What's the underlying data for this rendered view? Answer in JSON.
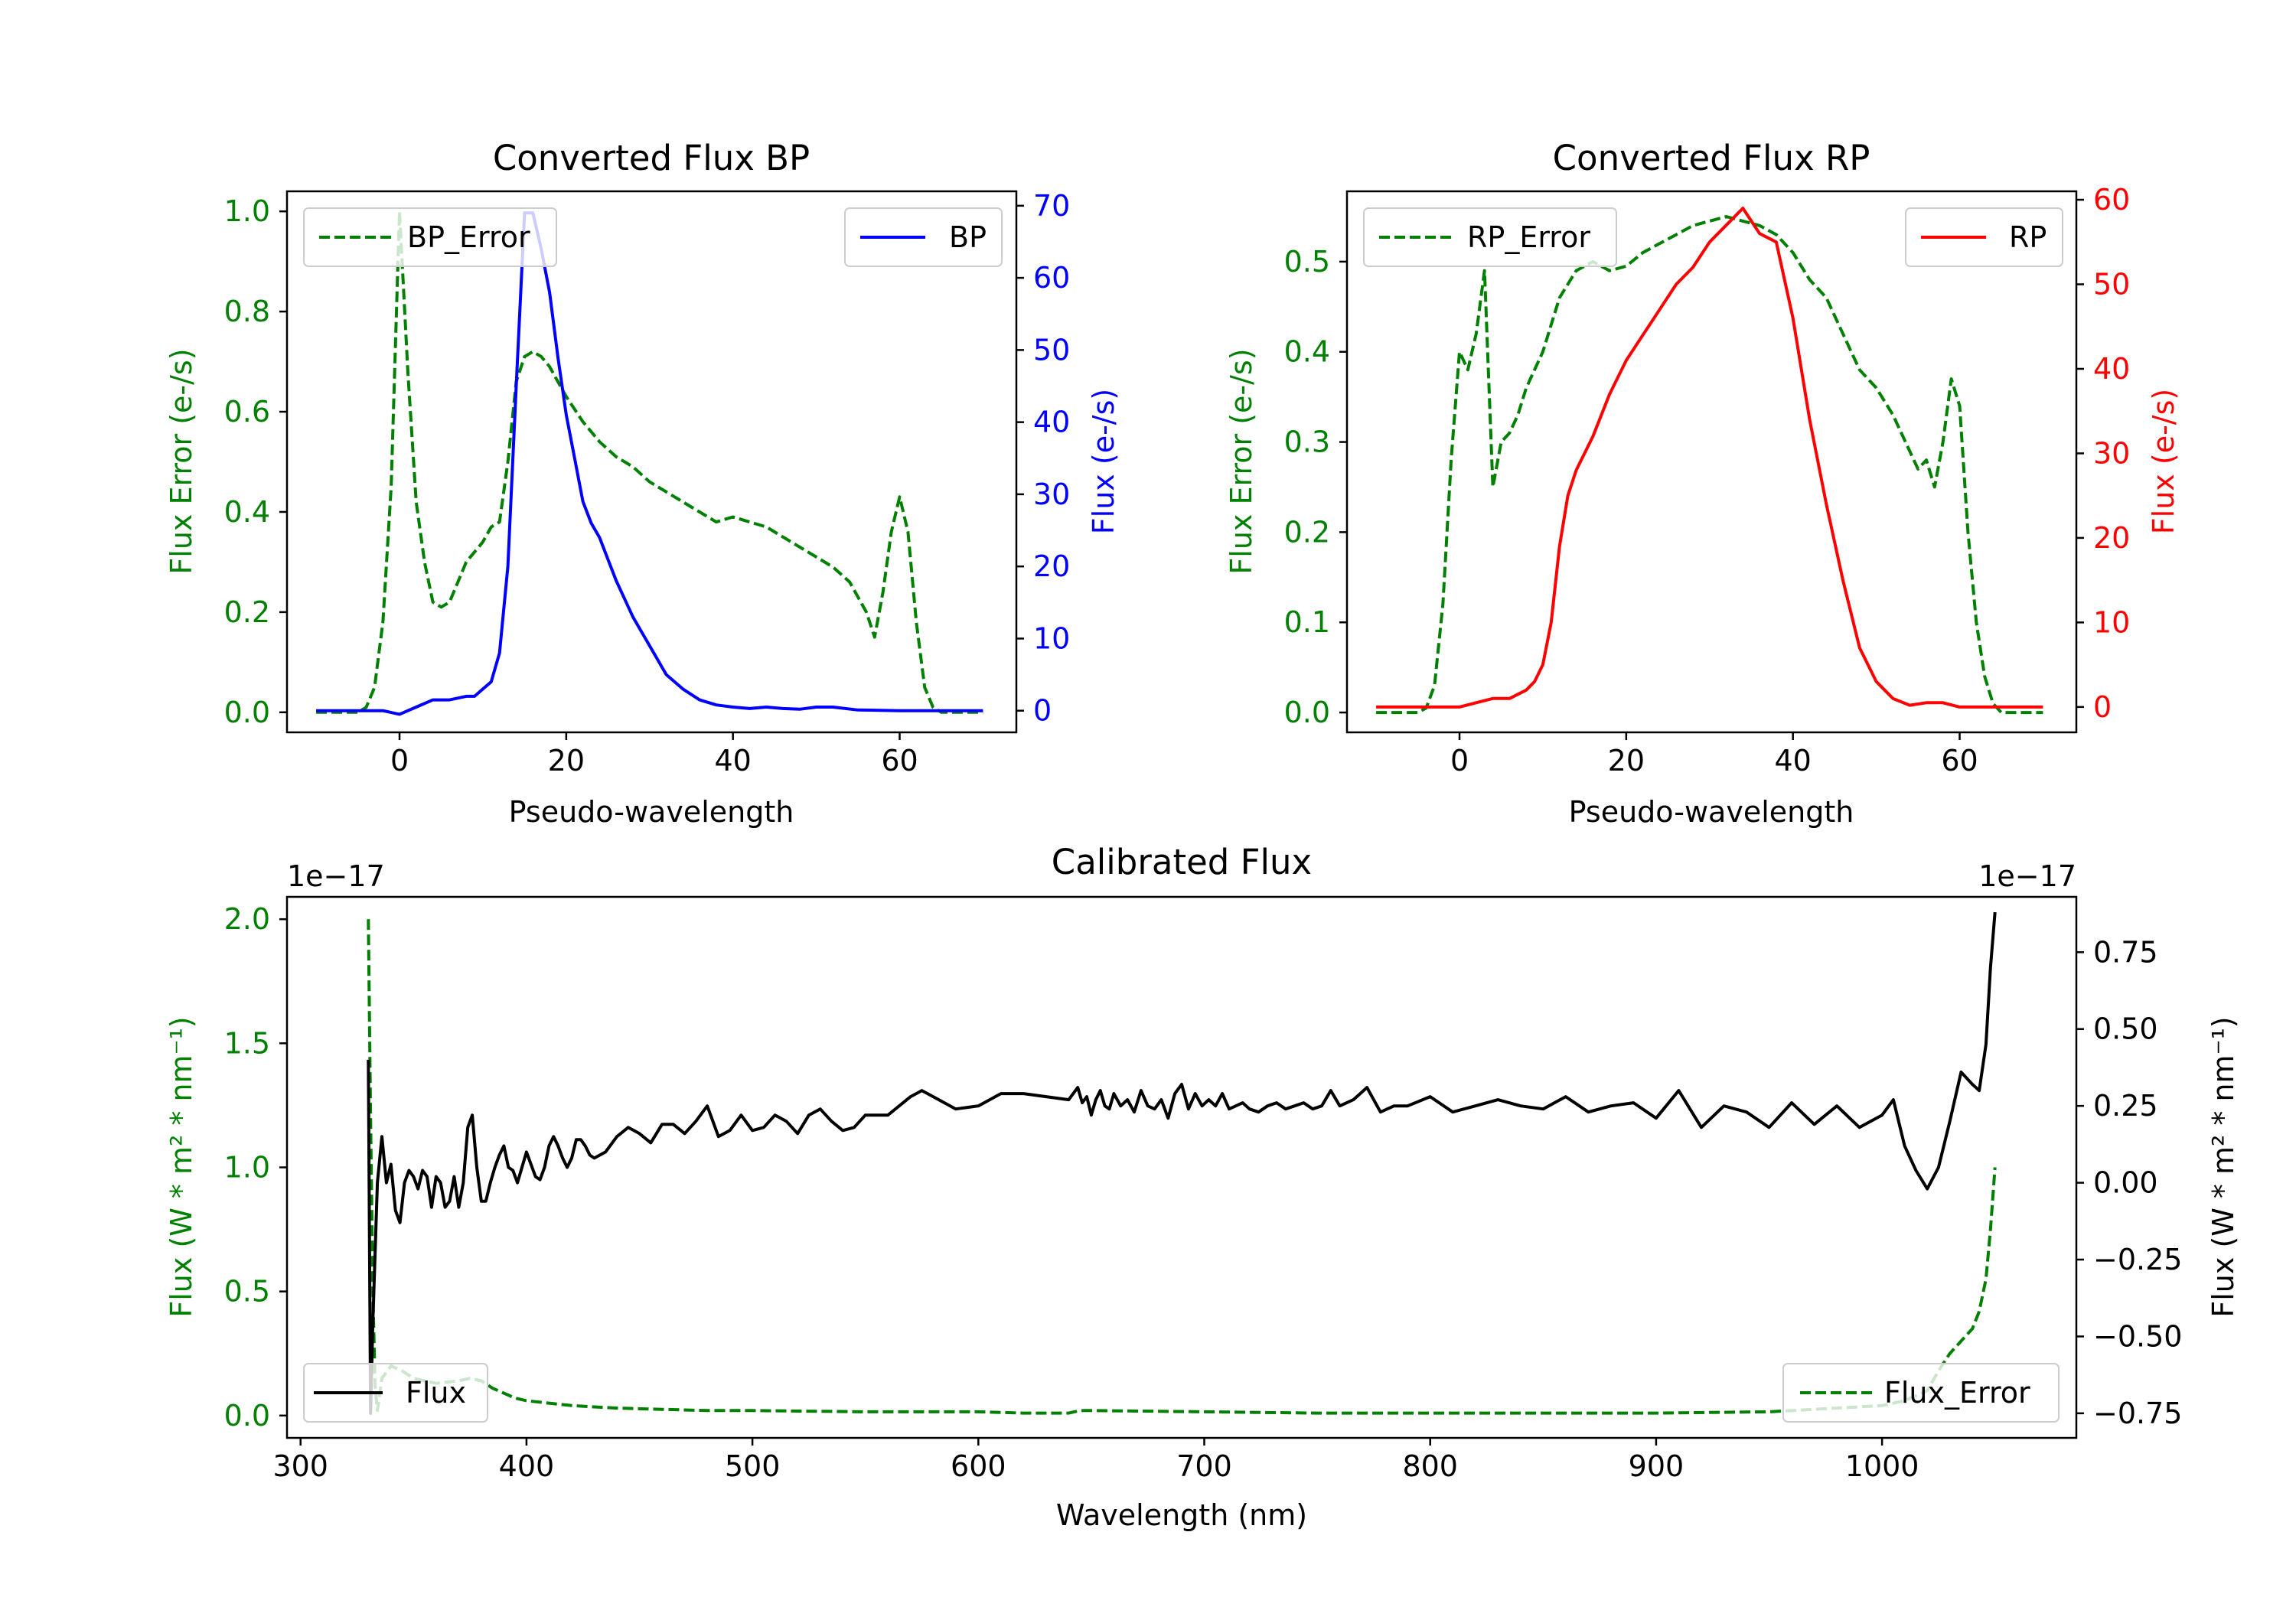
{
  "chart_data": [
    {
      "type": "line",
      "title": "Converted Flux BP",
      "xlabel": "Pseudo-wavelength",
      "ylabel_left": "Flux Error (e-/s)",
      "ylabel_right": "Flux (e-/s)",
      "xlim": [
        -13.5,
        74
      ],
      "ylim_left": [
        -0.04,
        1.04
      ],
      "ylim_right": [
        -3,
        72
      ],
      "xticks": [
        0,
        20,
        40,
        60
      ],
      "yticks_left": [
        0.0,
        0.2,
        0.4,
        0.6,
        0.8,
        1.0
      ],
      "yticks_right": [
        0,
        10,
        20,
        30,
        40,
        50,
        60,
        70
      ],
      "left_color": "#008000",
      "right_color": "#0000ff",
      "legend_left": {
        "label": "BP_Error",
        "placement": "top-left"
      },
      "legend_right": {
        "label": "BP",
        "placement": "top-right"
      },
      "series": [
        {
          "name": "BP_Error",
          "axis": "left",
          "style": "dashed",
          "color": "#008000",
          "x": [
            -10,
            -5,
            -4,
            -3,
            -2,
            -1,
            0,
            1,
            2,
            3,
            4,
            5,
            6,
            7,
            8,
            9,
            10,
            11,
            12,
            13,
            14,
            15,
            16,
            17,
            18,
            19,
            20,
            22,
            24,
            26,
            28,
            30,
            32,
            34,
            36,
            38,
            40,
            42,
            44,
            46,
            48,
            50,
            52,
            54,
            56,
            57,
            58,
            59,
            60,
            61,
            62,
            63,
            64,
            65,
            70
          ],
          "y": [
            0.0,
            0.0,
            0.01,
            0.05,
            0.18,
            0.45,
            1.0,
            0.68,
            0.42,
            0.3,
            0.22,
            0.21,
            0.22,
            0.26,
            0.3,
            0.32,
            0.34,
            0.37,
            0.38,
            0.5,
            0.66,
            0.71,
            0.72,
            0.71,
            0.69,
            0.66,
            0.63,
            0.58,
            0.54,
            0.51,
            0.49,
            0.46,
            0.44,
            0.42,
            0.4,
            0.38,
            0.39,
            0.38,
            0.37,
            0.35,
            0.33,
            0.31,
            0.29,
            0.26,
            0.2,
            0.15,
            0.24,
            0.36,
            0.43,
            0.36,
            0.18,
            0.05,
            0.01,
            0.0,
            0.0
          ]
        },
        {
          "name": "BP",
          "axis": "right",
          "style": "solid",
          "color": "#0000ff",
          "x": [
            -10,
            -5,
            -2,
            0,
            2,
            4,
            6,
            8,
            9,
            10,
            11,
            12,
            13,
            14,
            15,
            16,
            17,
            18,
            19,
            20,
            21,
            22,
            23,
            24,
            25,
            26,
            28,
            30,
            32,
            34,
            36,
            38,
            40,
            42,
            44,
            46,
            48,
            50,
            52,
            55,
            60,
            65,
            70
          ],
          "y": [
            0,
            0,
            0,
            -0.5,
            0.5,
            1.5,
            1.5,
            2,
            2,
            3,
            4,
            8,
            20,
            45,
            69,
            69,
            64,
            58,
            49,
            41,
            35,
            29,
            26,
            24,
            21,
            18,
            13,
            9,
            5,
            3,
            1.5,
            0.8,
            0.5,
            0.3,
            0.5,
            0.3,
            0.2,
            0.5,
            0.5,
            0.1,
            0,
            0,
            0
          ]
        }
      ]
    },
    {
      "type": "line",
      "title": "Converted Flux RP",
      "xlabel": "Pseudo-wavelength",
      "ylabel_left": "Flux Error (e-/s)",
      "ylabel_right": "Flux (e-/s)",
      "xlim": [
        -13.5,
        74
      ],
      "ylim_left": [
        -0.022,
        0.578
      ],
      "ylim_right": [
        -3,
        61
      ],
      "xticks": [
        0,
        20,
        40,
        60
      ],
      "yticks_left": [
        0.0,
        0.1,
        0.2,
        0.3,
        0.4,
        0.5
      ],
      "yticks_right": [
        0,
        10,
        20,
        30,
        40,
        50,
        60
      ],
      "left_color": "#008000",
      "right_color": "#ff0000",
      "legend_left": {
        "label": "RP_Error",
        "placement": "top-left"
      },
      "legend_right": {
        "label": "RP",
        "placement": "top-right"
      },
      "series": [
        {
          "name": "RP_Error",
          "axis": "left",
          "style": "dashed",
          "color": "#008000",
          "x": [
            -10,
            -5,
            -4,
            -3,
            -2,
            -1,
            0,
            1,
            2,
            3,
            4,
            5,
            6,
            7,
            8,
            10,
            12,
            14,
            16,
            18,
            20,
            22,
            24,
            26,
            28,
            30,
            32,
            34,
            36,
            38,
            40,
            42,
            44,
            46,
            48,
            50,
            52,
            54,
            55,
            56,
            57,
            58,
            59,
            60,
            61,
            62,
            63,
            64,
            65,
            70
          ],
          "y": [
            0.0,
            0.0,
            0.005,
            0.03,
            0.12,
            0.28,
            0.4,
            0.38,
            0.42,
            0.49,
            0.25,
            0.3,
            0.31,
            0.33,
            0.36,
            0.4,
            0.46,
            0.49,
            0.5,
            0.49,
            0.495,
            0.51,
            0.52,
            0.53,
            0.54,
            0.545,
            0.55,
            0.545,
            0.54,
            0.53,
            0.51,
            0.48,
            0.46,
            0.42,
            0.38,
            0.36,
            0.33,
            0.29,
            0.27,
            0.28,
            0.25,
            0.3,
            0.37,
            0.34,
            0.2,
            0.1,
            0.04,
            0.01,
            0.0,
            0.0
          ]
        },
        {
          "name": "RP",
          "axis": "right",
          "style": "solid",
          "color": "#ff0000",
          "x": [
            -10,
            -4,
            -2,
            0,
            2,
            4,
            6,
            8,
            9,
            10,
            11,
            12,
            13,
            14,
            16,
            18,
            20,
            22,
            24,
            26,
            28,
            30,
            32,
            34,
            36,
            38,
            40,
            42,
            44,
            46,
            48,
            49,
            50,
            52,
            54,
            56,
            58,
            60,
            65,
            70
          ],
          "y": [
            0,
            0,
            0,
            0,
            0.5,
            1,
            1,
            2,
            3,
            5,
            10,
            19,
            25,
            28,
            32,
            37,
            41,
            44,
            47,
            50,
            52,
            55,
            57,
            59,
            56,
            55,
            46,
            34,
            24,
            15,
            7,
            5,
            3,
            1,
            0.2,
            0.5,
            0.5,
            0,
            0,
            0
          ]
        }
      ]
    },
    {
      "type": "line",
      "title": "Calibrated Flux",
      "xlabel": "Wavelength (nm)",
      "ylabel_left": "Flux (W * m² * nm⁻¹)",
      "ylabel_right": "Flux (W * m² * nm⁻¹)",
      "offset_left": "1e−17",
      "offset_right": "1e−17",
      "xlim": [
        294,
        1086
      ],
      "ylim_left": [
        -0.09,
        2.09
      ],
      "ylim_right": [
        -0.83,
        0.93
      ],
      "xticks": [
        300,
        400,
        500,
        600,
        700,
        800,
        900,
        1000
      ],
      "yticks_left": [
        0.0,
        0.5,
        1.0,
        1.5,
        2.0
      ],
      "yticks_right": [
        -0.75,
        -0.5,
        -0.25,
        0.0,
        0.25,
        0.5,
        0.75
      ],
      "ytick_labels_right": [
        "−0.75",
        "−0.50",
        "−0.25",
        "0.00",
        "0.25",
        "0.50",
        "0.75"
      ],
      "left_color": "#008000",
      "right_color": "#000000",
      "legend_left": {
        "label": "Flux",
        "placement": "bottom-left"
      },
      "legend_right": {
        "label": "Flux_Error",
        "placement": "bottom-right"
      },
      "series": [
        {
          "name": "Flux",
          "axis": "right",
          "style": "solid",
          "color": "#000000",
          "x": [
            330,
            331,
            332,
            334,
            336,
            338,
            340,
            342,
            344,
            346,
            348,
            350,
            352,
            354,
            356,
            358,
            360,
            362,
            364,
            366,
            368,
            370,
            372,
            374,
            376,
            378,
            380,
            382,
            384,
            386,
            388,
            390,
            392,
            394,
            396,
            398,
            400,
            402,
            404,
            406,
            408,
            410,
            412,
            414,
            416,
            418,
            420,
            422,
            424,
            426,
            428,
            430,
            435,
            440,
            445,
            450,
            455,
            460,
            465,
            470,
            475,
            480,
            485,
            490,
            495,
            500,
            505,
            510,
            515,
            520,
            525,
            530,
            535,
            540,
            545,
            550,
            560,
            570,
            575,
            580,
            590,
            600,
            610,
            620,
            630,
            640,
            642,
            644,
            646,
            648,
            650,
            652,
            654,
            656,
            658,
            660,
            663,
            666,
            669,
            672,
            675,
            678,
            681,
            684,
            687,
            690,
            693,
            696,
            699,
            702,
            705,
            708,
            711,
            714,
            717,
            720,
            724,
            728,
            732,
            736,
            740,
            744,
            748,
            752,
            756,
            760,
            766,
            772,
            778,
            784,
            790,
            800,
            810,
            820,
            830,
            840,
            850,
            860,
            870,
            880,
            890,
            900,
            910,
            920,
            930,
            940,
            950,
            960,
            970,
            980,
            990,
            1000,
            1005,
            1010,
            1015,
            1020,
            1025,
            1030,
            1035,
            1040,
            1043,
            1046,
            1048,
            1050
          ],
          "y": [
            0.4,
            -0.75,
            -0.45,
            0.0,
            0.15,
            0.0,
            0.06,
            -0.09,
            -0.13,
            0.0,
            0.04,
            0.02,
            -0.02,
            0.04,
            0.02,
            -0.08,
            0.02,
            0.0,
            -0.08,
            -0.06,
            0.02,
            -0.08,
            0.0,
            0.18,
            0.22,
            0.05,
            -0.06,
            -0.06,
            0.0,
            0.05,
            0.09,
            0.12,
            0.05,
            0.04,
            0.0,
            0.05,
            0.1,
            0.06,
            0.02,
            0.01,
            0.05,
            0.12,
            0.15,
            0.12,
            0.08,
            0.05,
            0.08,
            0.14,
            0.14,
            0.12,
            0.09,
            0.08,
            0.1,
            0.15,
            0.18,
            0.16,
            0.13,
            0.19,
            0.19,
            0.16,
            0.2,
            0.25,
            0.15,
            0.17,
            0.22,
            0.17,
            0.18,
            0.22,
            0.2,
            0.16,
            0.22,
            0.24,
            0.2,
            0.17,
            0.18,
            0.22,
            0.22,
            0.28,
            0.3,
            0.28,
            0.24,
            0.25,
            0.29,
            0.29,
            0.28,
            0.27,
            0.29,
            0.31,
            0.26,
            0.28,
            0.22,
            0.27,
            0.3,
            0.25,
            0.24,
            0.29,
            0.25,
            0.27,
            0.23,
            0.3,
            0.25,
            0.24,
            0.27,
            0.21,
            0.29,
            0.32,
            0.24,
            0.29,
            0.25,
            0.27,
            0.25,
            0.29,
            0.24,
            0.25,
            0.26,
            0.24,
            0.23,
            0.25,
            0.26,
            0.24,
            0.25,
            0.26,
            0.24,
            0.25,
            0.3,
            0.25,
            0.27,
            0.31,
            0.23,
            0.25,
            0.25,
            0.28,
            0.23,
            0.25,
            0.27,
            0.25,
            0.24,
            0.28,
            0.23,
            0.25,
            0.26,
            0.21,
            0.3,
            0.18,
            0.25,
            0.23,
            0.18,
            0.26,
            0.19,
            0.25,
            0.18,
            0.22,
            0.27,
            0.12,
            0.04,
            -0.02,
            0.05,
            0.2,
            0.36,
            0.32,
            0.3,
            0.45,
            0.7,
            0.88
          ]
        },
        {
          "name": "Flux_Error",
          "axis": "left",
          "style": "dashed",
          "color": "#008000",
          "x": [
            330,
            331,
            332,
            333,
            334,
            336,
            340,
            345,
            350,
            360,
            370,
            375,
            380,
            385,
            390,
            395,
            400,
            410,
            420,
            430,
            440,
            460,
            480,
            500,
            550,
            600,
            620,
            640,
            645,
            650,
            700,
            750,
            800,
            850,
            900,
            950,
            1000,
            1010,
            1020,
            1025,
            1030,
            1035,
            1040,
            1043,
            1046,
            1048,
            1050
          ],
          "y": [
            2.0,
            1.2,
            0.5,
            0.12,
            0.02,
            0.15,
            0.2,
            0.18,
            0.15,
            0.13,
            0.14,
            0.15,
            0.14,
            0.11,
            0.09,
            0.07,
            0.06,
            0.05,
            0.04,
            0.035,
            0.03,
            0.025,
            0.02,
            0.02,
            0.015,
            0.015,
            0.01,
            0.01,
            0.02,
            0.02,
            0.015,
            0.01,
            0.01,
            0.01,
            0.01,
            0.015,
            0.04,
            0.06,
            0.1,
            0.18,
            0.25,
            0.3,
            0.35,
            0.42,
            0.55,
            0.75,
            1.0
          ]
        }
      ]
    }
  ]
}
